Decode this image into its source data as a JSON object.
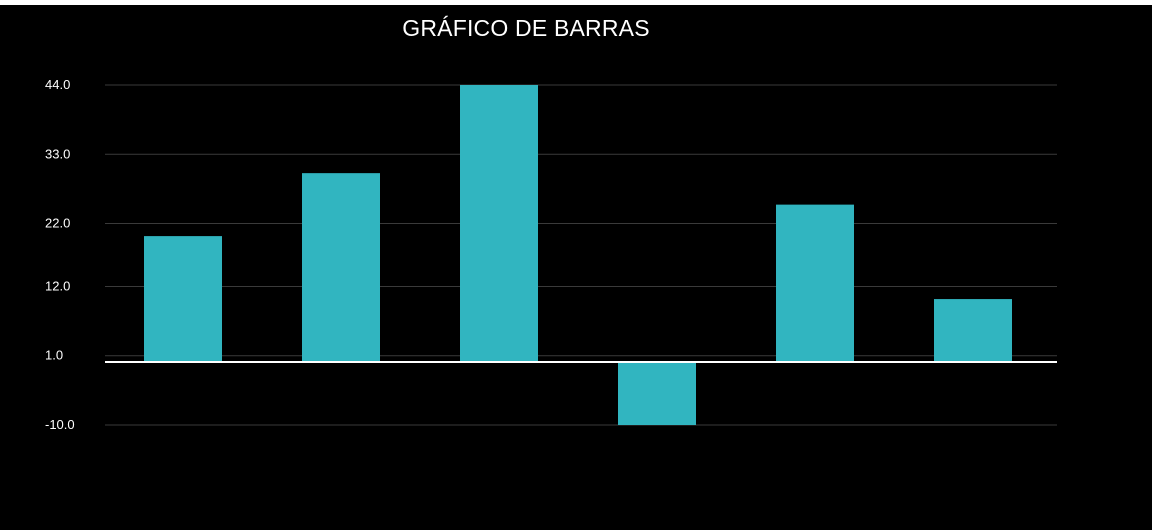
{
  "chart_data": {
    "type": "bar",
    "title": "GRÁFICO DE BARRAS",
    "xlabel": "",
    "ylabel": "",
    "categories": [
      "",
      "",
      "",
      "",
      "",
      ""
    ],
    "values": [
      20,
      30,
      44,
      -10,
      25,
      10
    ],
    "y_ticks": [
      {
        "value": 44,
        "label": "44.0"
      },
      {
        "value": 33,
        "label": "33.0"
      },
      {
        "value": 22,
        "label": "22.0"
      },
      {
        "value": 12,
        "label": "12.0"
      },
      {
        "value": 1,
        "label": "1.0"
      },
      {
        "value": -10,
        "label": "-10.0"
      }
    ],
    "baseline": 0,
    "grid": true,
    "legend": "none",
    "colors": {
      "background": "#000000",
      "bar": "#31b5c0",
      "grid": "#3a3a3a",
      "baseline": "#ffffff",
      "text": "#ffffff"
    }
  }
}
